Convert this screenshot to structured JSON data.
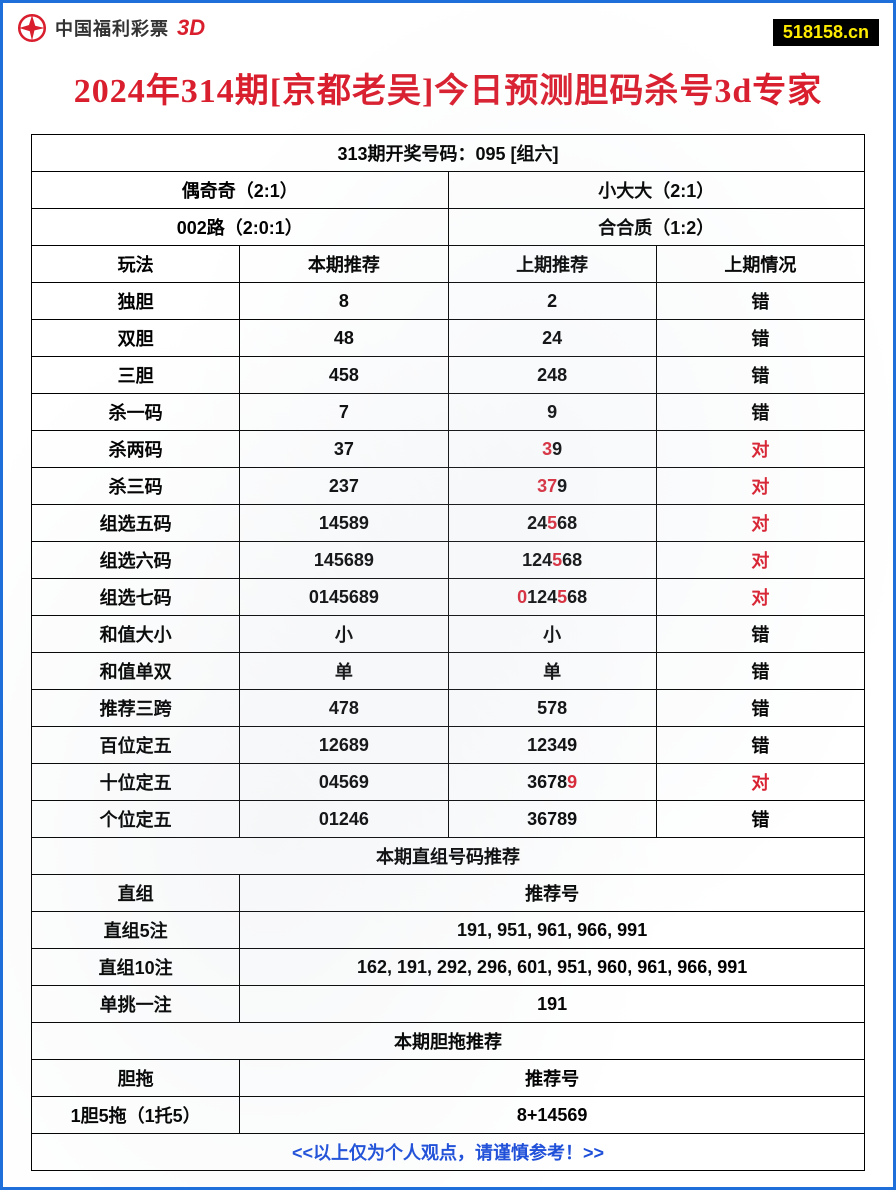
{
  "header": {
    "logo_text": "中国福利彩票",
    "logo_3d": "3D",
    "site_badge": "518158.cn"
  },
  "title": "2024年314期[京都老吴]今日预测胆码杀号3d专家",
  "colors": {
    "border": "#1e6fd9",
    "title": "#d91e2e",
    "red_text": "#d91e2e",
    "footer_text": "#1e4fd9",
    "badge_bg": "#000000",
    "badge_fg": "#ffeb00"
  },
  "top_info": {
    "draw_result": "313期开奖号码：095 [组六]",
    "cell_a1": "偶奇奇（2:1）",
    "cell_a2": "小大大（2:1）",
    "cell_b1": "002路（2:0:1）",
    "cell_b2": "合合质（1:2）"
  },
  "columns": {
    "c1": "玩法",
    "c2": "本期推荐",
    "c3": "上期推荐",
    "c4": "上期情况"
  },
  "rows": [
    {
      "name": "独胆",
      "current": "8",
      "prev": "2",
      "status": "错",
      "status_red": false,
      "highlight": []
    },
    {
      "name": "双胆",
      "current": "48",
      "prev": "24",
      "status": "错",
      "status_red": false,
      "highlight": []
    },
    {
      "name": "三胆",
      "current": "458",
      "prev": "248",
      "status": "错",
      "status_red": false,
      "highlight": []
    },
    {
      "name": "杀一码",
      "current": "7",
      "prev": "9",
      "status": "错",
      "status_red": false,
      "highlight": []
    },
    {
      "name": "杀两码",
      "current": "37",
      "prev": "39",
      "status": "对",
      "status_red": true,
      "highlight": [
        0
      ]
    },
    {
      "name": "杀三码",
      "current": "237",
      "prev": "379",
      "status": "对",
      "status_red": true,
      "highlight": [
        0,
        1
      ]
    },
    {
      "name": "组选五码",
      "current": "14589",
      "prev": "24568",
      "status": "对",
      "status_red": true,
      "highlight": [
        2
      ]
    },
    {
      "name": "组选六码",
      "current": "145689",
      "prev": "124568",
      "status": "对",
      "status_red": true,
      "highlight": [
        3
      ]
    },
    {
      "name": "组选七码",
      "current": "0145689",
      "prev": "0124568",
      "status": "对",
      "status_red": true,
      "highlight": [
        0,
        4
      ]
    },
    {
      "name": "和值大小",
      "current": "小",
      "prev": "小",
      "status": "错",
      "status_red": false,
      "highlight": []
    },
    {
      "name": "和值单双",
      "current": "单",
      "prev": "单",
      "status": "错",
      "status_red": false,
      "highlight": []
    },
    {
      "name": "推荐三跨",
      "current": "478",
      "prev": "578",
      "status": "错",
      "status_red": false,
      "highlight": []
    },
    {
      "name": "百位定五",
      "current": "12689",
      "prev": "12349",
      "status": "错",
      "status_red": false,
      "highlight": []
    },
    {
      "name": "十位定五",
      "current": "04569",
      "prev": "36789",
      "status": "对",
      "status_red": true,
      "highlight": [
        4
      ]
    },
    {
      "name": "个位定五",
      "current": "01246",
      "prev": "36789",
      "status": "错",
      "status_red": false,
      "highlight": []
    }
  ],
  "direct_section": {
    "header": "本期直组号码推荐",
    "label_col": "直组",
    "rec_col": "推荐号",
    "rows": [
      {
        "name": "直组5注",
        "value": "191, 951, 961, 966, 991"
      },
      {
        "name": "直组10注",
        "value": "162, 191, 292, 296, 601, 951, 960, 961, 966, 991"
      },
      {
        "name": "单挑一注",
        "value": "191"
      }
    ]
  },
  "dantuo_section": {
    "header": "本期胆拖推荐",
    "label_col": "胆拖",
    "rec_col": "推荐号",
    "rows": [
      {
        "name": "1胆5拖（1托5）",
        "value": "8+14569"
      }
    ]
  },
  "footer": "<<以上仅为个人观点，请谨慎参考！>>"
}
